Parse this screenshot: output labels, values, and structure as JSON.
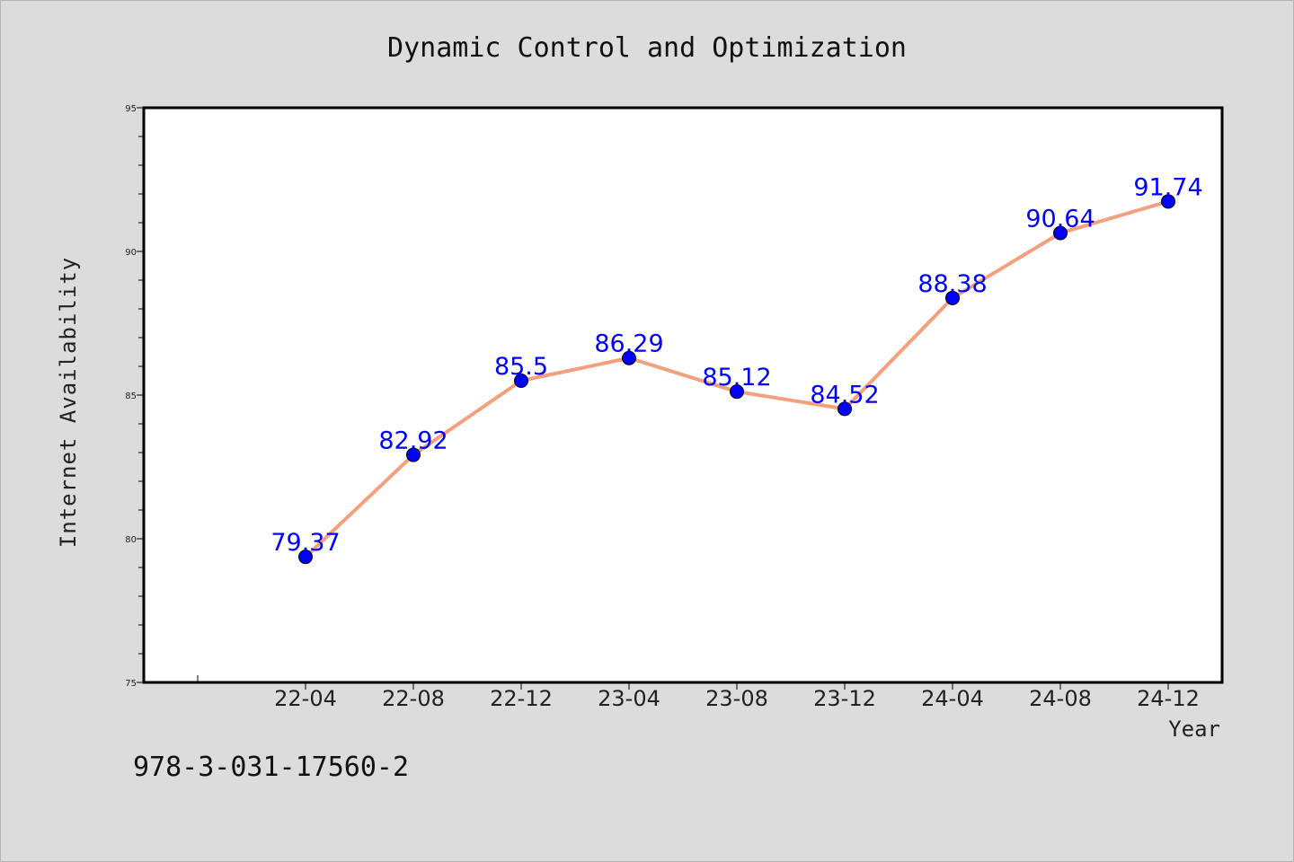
{
  "chart_data": {
    "type": "line",
    "title": "Dynamic Control and Optimization",
    "xlabel": "Year",
    "ylabel": "Internet Availability",
    "categories": [
      "22-04",
      "22-08",
      "22-12",
      "23-04",
      "23-08",
      "23-12",
      "24-04",
      "24-08",
      "24-12"
    ],
    "series": [
      {
        "values": [
          79.37,
          82.92,
          85.5,
          86.29,
          85.12,
          84.52,
          88.38,
          90.64,
          91.74
        ],
        "data_labels": [
          "79.37",
          "82.92",
          "85.5",
          "86.29",
          "85.12",
          "84.52",
          "88.38",
          "90.64",
          "91.74"
        ],
        "line_color": "#f4a07e",
        "marker_color": "#0000ff"
      }
    ],
    "ylim": [
      75,
      95
    ],
    "yticks": [
      75,
      80,
      85,
      90,
      95
    ],
    "grid": false,
    "legend": false
  },
  "footer_text": "978-3-031-17560-2",
  "colors": {
    "background": "#dcdcdc",
    "plot_background": "#ffffff",
    "line": "#f4a07e",
    "marker": "#0000ff",
    "data_label": "#0000ff"
  }
}
